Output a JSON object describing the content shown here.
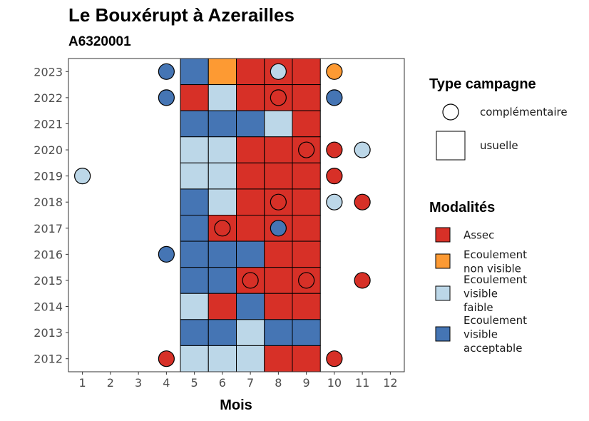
{
  "chart_data": {
    "type": "heatmap",
    "title": "Le Bouxérupt à Azerailles",
    "subtitle": "A6320001",
    "xlabel": "Mois",
    "ylabel": "",
    "x_ticks": [
      "1",
      "2",
      "3",
      "4",
      "5",
      "6",
      "7",
      "8",
      "9",
      "10",
      "11",
      "12"
    ],
    "y_ticks": [
      "2012",
      "2013",
      "2014",
      "2015",
      "2016",
      "2017",
      "2018",
      "2019",
      "2020",
      "2021",
      "2022",
      "2023"
    ],
    "grid": false,
    "legend_position": "right",
    "colors": {
      "Assec": "#d73027",
      "Ecoulement non visible": "#fd9a33",
      "Ecoulement visible faible": "#bcd7e8",
      "Ecoulement visible acceptable": "#4575b4"
    },
    "legend_shape": {
      "title": "Type campagne",
      "entries": [
        {
          "label": "complémentaire",
          "shape": "circle"
        },
        {
          "label": "usuelle",
          "shape": "square"
        }
      ]
    },
    "legend_fill": {
      "title": "Modalités",
      "entries": [
        {
          "key": "Assec",
          "lines": [
            "Assec"
          ]
        },
        {
          "key": "Ecoulement non visible",
          "lines": [
            "Ecoulement",
            "non visible"
          ]
        },
        {
          "key": "Ecoulement visible faible",
          "lines": [
            "Ecoulement",
            "visible",
            "faible"
          ]
        },
        {
          "key": "Ecoulement visible acceptable",
          "lines": [
            "Ecoulement",
            "visible",
            "acceptable"
          ]
        }
      ]
    },
    "squares": [
      {
        "year": 2023,
        "month": 5,
        "status": "Ecoulement visible acceptable"
      },
      {
        "year": 2023,
        "month": 6,
        "status": "Ecoulement non visible"
      },
      {
        "year": 2023,
        "month": 7,
        "status": "Assec"
      },
      {
        "year": 2023,
        "month": 8,
        "status": "Assec"
      },
      {
        "year": 2023,
        "month": 9,
        "status": "Assec"
      },
      {
        "year": 2022,
        "month": 5,
        "status": "Assec"
      },
      {
        "year": 2022,
        "month": 6,
        "status": "Ecoulement visible faible"
      },
      {
        "year": 2022,
        "month": 7,
        "status": "Assec"
      },
      {
        "year": 2022,
        "month": 8,
        "status": "Assec"
      },
      {
        "year": 2022,
        "month": 9,
        "status": "Assec"
      },
      {
        "year": 2021,
        "month": 5,
        "status": "Ecoulement visible acceptable"
      },
      {
        "year": 2021,
        "month": 6,
        "status": "Ecoulement visible acceptable"
      },
      {
        "year": 2021,
        "month": 7,
        "status": "Ecoulement visible acceptable"
      },
      {
        "year": 2021,
        "month": 8,
        "status": "Ecoulement visible faible"
      },
      {
        "year": 2021,
        "month": 9,
        "status": "Assec"
      },
      {
        "year": 2020,
        "month": 5,
        "status": "Ecoulement visible faible"
      },
      {
        "year": 2020,
        "month": 6,
        "status": "Ecoulement visible faible"
      },
      {
        "year": 2020,
        "month": 7,
        "status": "Assec"
      },
      {
        "year": 2020,
        "month": 8,
        "status": "Assec"
      },
      {
        "year": 2020,
        "month": 9,
        "status": "Assec"
      },
      {
        "year": 2019,
        "month": 5,
        "status": "Ecoulement visible faible"
      },
      {
        "year": 2019,
        "month": 6,
        "status": "Ecoulement visible faible"
      },
      {
        "year": 2019,
        "month": 7,
        "status": "Assec"
      },
      {
        "year": 2019,
        "month": 8,
        "status": "Assec"
      },
      {
        "year": 2019,
        "month": 9,
        "status": "Assec"
      },
      {
        "year": 2018,
        "month": 5,
        "status": "Ecoulement visible acceptable"
      },
      {
        "year": 2018,
        "month": 6,
        "status": "Ecoulement visible faible"
      },
      {
        "year": 2018,
        "month": 7,
        "status": "Assec"
      },
      {
        "year": 2018,
        "month": 8,
        "status": "Assec"
      },
      {
        "year": 2018,
        "month": 9,
        "status": "Assec"
      },
      {
        "year": 2017,
        "month": 5,
        "status": "Ecoulement visible acceptable"
      },
      {
        "year": 2017,
        "month": 6,
        "status": "Assec"
      },
      {
        "year": 2017,
        "month": 7,
        "status": "Assec"
      },
      {
        "year": 2017,
        "month": 8,
        "status": "Assec"
      },
      {
        "year": 2017,
        "month": 9,
        "status": "Assec"
      },
      {
        "year": 2016,
        "month": 5,
        "status": "Ecoulement visible acceptable"
      },
      {
        "year": 2016,
        "month": 6,
        "status": "Ecoulement visible acceptable"
      },
      {
        "year": 2016,
        "month": 7,
        "status": "Ecoulement visible acceptable"
      },
      {
        "year": 2016,
        "month": 8,
        "status": "Assec"
      },
      {
        "year": 2016,
        "month": 9,
        "status": "Assec"
      },
      {
        "year": 2015,
        "month": 5,
        "status": "Ecoulement visible acceptable"
      },
      {
        "year": 2015,
        "month": 6,
        "status": "Ecoulement visible acceptable"
      },
      {
        "year": 2015,
        "month": 7,
        "status": "Assec"
      },
      {
        "year": 2015,
        "month": 8,
        "status": "Assec"
      },
      {
        "year": 2015,
        "month": 9,
        "status": "Assec"
      },
      {
        "year": 2014,
        "month": 5,
        "status": "Ecoulement visible faible"
      },
      {
        "year": 2014,
        "month": 6,
        "status": "Assec"
      },
      {
        "year": 2014,
        "month": 7,
        "status": "Ecoulement visible acceptable"
      },
      {
        "year": 2014,
        "month": 8,
        "status": "Assec"
      },
      {
        "year": 2014,
        "month": 9,
        "status": "Assec"
      },
      {
        "year": 2013,
        "month": 5,
        "status": "Ecoulement visible acceptable"
      },
      {
        "year": 2013,
        "month": 6,
        "status": "Ecoulement visible acceptable"
      },
      {
        "year": 2013,
        "month": 7,
        "status": "Ecoulement visible faible"
      },
      {
        "year": 2013,
        "month": 8,
        "status": "Ecoulement visible acceptable"
      },
      {
        "year": 2013,
        "month": 9,
        "status": "Ecoulement visible acceptable"
      },
      {
        "year": 2012,
        "month": 5,
        "status": "Ecoulement visible faible"
      },
      {
        "year": 2012,
        "month": 6,
        "status": "Ecoulement visible faible"
      },
      {
        "year": 2012,
        "month": 7,
        "status": "Ecoulement visible faible"
      },
      {
        "year": 2012,
        "month": 8,
        "status": "Assec"
      },
      {
        "year": 2012,
        "month": 9,
        "status": "Assec"
      }
    ],
    "circles": [
      {
        "year": 2023,
        "month": 4,
        "status": "Ecoulement visible acceptable"
      },
      {
        "year": 2023,
        "month": 8,
        "status": "Ecoulement visible faible"
      },
      {
        "year": 2023,
        "month": 10,
        "status": "Ecoulement non visible"
      },
      {
        "year": 2022,
        "month": 4,
        "status": "Ecoulement visible acceptable"
      },
      {
        "year": 2022,
        "month": 8,
        "status": "Assec"
      },
      {
        "year": 2022,
        "month": 10,
        "status": "Ecoulement visible acceptable"
      },
      {
        "year": 2020,
        "month": 9,
        "status": "Assec"
      },
      {
        "year": 2020,
        "month": 10,
        "status": "Assec"
      },
      {
        "year": 2020,
        "month": 11,
        "status": "Ecoulement visible faible"
      },
      {
        "year": 2019,
        "month": 1,
        "status": "Ecoulement visible faible"
      },
      {
        "year": 2019,
        "month": 10,
        "status": "Assec"
      },
      {
        "year": 2018,
        "month": 8,
        "status": "Assec"
      },
      {
        "year": 2018,
        "month": 10,
        "status": "Ecoulement visible faible"
      },
      {
        "year": 2018,
        "month": 11,
        "status": "Assec"
      },
      {
        "year": 2017,
        "month": 6,
        "status": "Assec"
      },
      {
        "year": 2017,
        "month": 8,
        "status": "Ecoulement visible acceptable"
      },
      {
        "year": 2016,
        "month": 4,
        "status": "Ecoulement visible acceptable"
      },
      {
        "year": 2015,
        "month": 7,
        "status": "Assec"
      },
      {
        "year": 2015,
        "month": 9,
        "status": "Assec"
      },
      {
        "year": 2015,
        "month": 11,
        "status": "Assec"
      },
      {
        "year": 2012,
        "month": 4,
        "status": "Assec"
      },
      {
        "year": 2012,
        "month": 10,
        "status": "Assec"
      }
    ]
  }
}
